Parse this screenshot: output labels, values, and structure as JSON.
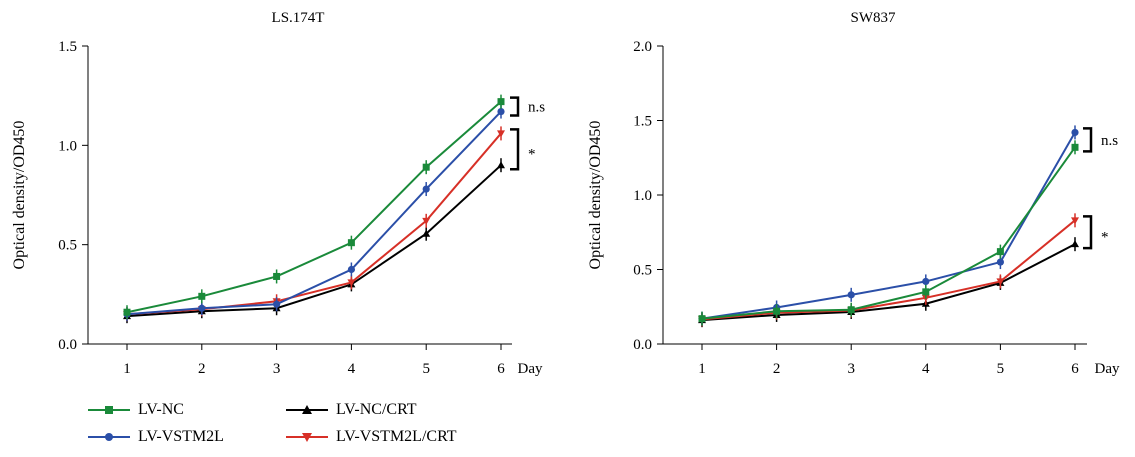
{
  "chart_data": [
    {
      "type": "line",
      "title": "LS.174T",
      "ylabel": "Optical density/OD450",
      "xlabel": "Day",
      "x": [
        1,
        2,
        3,
        4,
        5,
        6
      ],
      "ylim": [
        0,
        1.5
      ],
      "yticks": [
        "0.0",
        "0.5",
        "1.0",
        "1.5"
      ],
      "series": [
        {
          "name": "LV-NC",
          "color": "#1a8a3a",
          "marker": "square",
          "values": [
            0.16,
            0.24,
            0.34,
            0.51,
            0.89,
            1.22
          ]
        },
        {
          "name": "LV-VSTM2L",
          "color": "#2b4fa8",
          "marker": "circle",
          "values": [
            0.15,
            0.18,
            0.2,
            0.375,
            0.78,
            1.17
          ]
        },
        {
          "name": "LV-NC/CRT",
          "color": "#000000",
          "marker": "triangle-up",
          "values": [
            0.14,
            0.165,
            0.18,
            0.3,
            0.555,
            0.9
          ]
        },
        {
          "name": "LV-VSTM2L/CRT",
          "color": "#d73027",
          "marker": "triangle-down",
          "values": [
            0.15,
            0.175,
            0.215,
            0.31,
            0.62,
            1.06
          ]
        }
      ],
      "annotations": [
        {
          "text": "n.s",
          "between": [
            "LV-NC",
            "LV-VSTM2L"
          ]
        },
        {
          "text": "*",
          "between": [
            "LV-VSTM2L/CRT",
            "LV-NC/CRT"
          ]
        }
      ]
    },
    {
      "type": "line",
      "title": "SW837",
      "ylabel": "Optical density/OD450",
      "xlabel": "Day",
      "x": [
        1,
        2,
        3,
        4,
        5,
        6
      ],
      "ylim": [
        0,
        2.0
      ],
      "yticks": [
        "0.0",
        "0.5",
        "1.0",
        "1.5",
        "2.0"
      ],
      "series": [
        {
          "name": "LV-NC",
          "color": "#1a8a3a",
          "marker": "square",
          "values": [
            0.17,
            0.22,
            0.23,
            0.35,
            0.62,
            1.32
          ]
        },
        {
          "name": "LV-VSTM2L",
          "color": "#2b4fa8",
          "marker": "circle",
          "values": [
            0.17,
            0.245,
            0.33,
            0.42,
            0.55,
            1.42
          ]
        },
        {
          "name": "LV-NC/CRT",
          "color": "#000000",
          "marker": "triangle-up",
          "values": [
            0.16,
            0.195,
            0.215,
            0.27,
            0.41,
            0.67
          ]
        },
        {
          "name": "LV-VSTM2L/CRT",
          "color": "#d73027",
          "marker": "triangle-down",
          "values": [
            0.165,
            0.21,
            0.225,
            0.31,
            0.42,
            0.83
          ]
        }
      ],
      "annotations": [
        {
          "text": "n.s",
          "between": [
            "LV-VSTM2L",
            "LV-NC"
          ]
        },
        {
          "text": "*",
          "between": [
            "LV-VSTM2L/CRT",
            "LV-NC/CRT"
          ]
        }
      ]
    }
  ],
  "legend": [
    {
      "label": "LV-NC",
      "color": "#1a8a3a",
      "marker": "square"
    },
    {
      "label": "LV-NC/CRT",
      "color": "#000000",
      "marker": "triangle-up"
    },
    {
      "label": "LV-VSTM2L",
      "color": "#2b4fa8",
      "marker": "circle"
    },
    {
      "label": "LV-VSTM2L/CRT",
      "color": "#d73027",
      "marker": "triangle-down"
    }
  ]
}
